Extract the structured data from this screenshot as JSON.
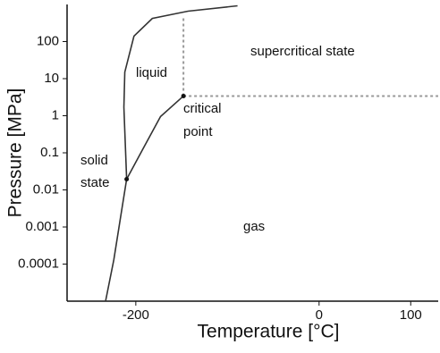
{
  "chart_data": {
    "type": "line",
    "x_label": "Temperature [°C]",
    "y_label": "Pressure [MPa]",
    "xlim": [
      -275,
      130
    ],
    "ylim": [
      1e-05,
      1000
    ],
    "log_y": true,
    "xticks": [
      -200,
      0,
      100
    ],
    "yticks": [
      0.0001,
      0.001,
      0.01,
      0.1,
      1,
      10,
      100
    ],
    "series": [
      {
        "color": "#333333",
        "dashed": false,
        "x": [
          -233,
          -224,
          -217,
          -210,
          -192,
          -173,
          -148
        ],
        "values": [
          1e-05,
          0.00013,
          0.0016,
          0.0195,
          0.13,
          0.95,
          3.4
        ]
      },
      {
        "color": "#333333",
        "dashed": false,
        "x": [
          -210,
          -213,
          -212,
          -202,
          -182,
          -143,
          -89
        ],
        "values": [
          0.0195,
          1.7,
          15,
          140,
          420,
          660,
          920
        ]
      },
      {
        "color": "#999999",
        "dashed": true,
        "x": [
          -148,
          -148
        ],
        "values": [
          3.4,
          430
        ]
      },
      {
        "color": "#999999",
        "dashed": true,
        "x": [
          -148,
          130
        ],
        "values": [
          3.4,
          3.4
        ]
      }
    ],
    "points": [
      {
        "x": -210,
        "y": 0.0195
      },
      {
        "x": -148,
        "y": 3.4
      }
    ],
    "annotations": [
      "liquid",
      "supercritical state",
      "critical",
      "point",
      "solid",
      "state",
      "gas"
    ]
  }
}
